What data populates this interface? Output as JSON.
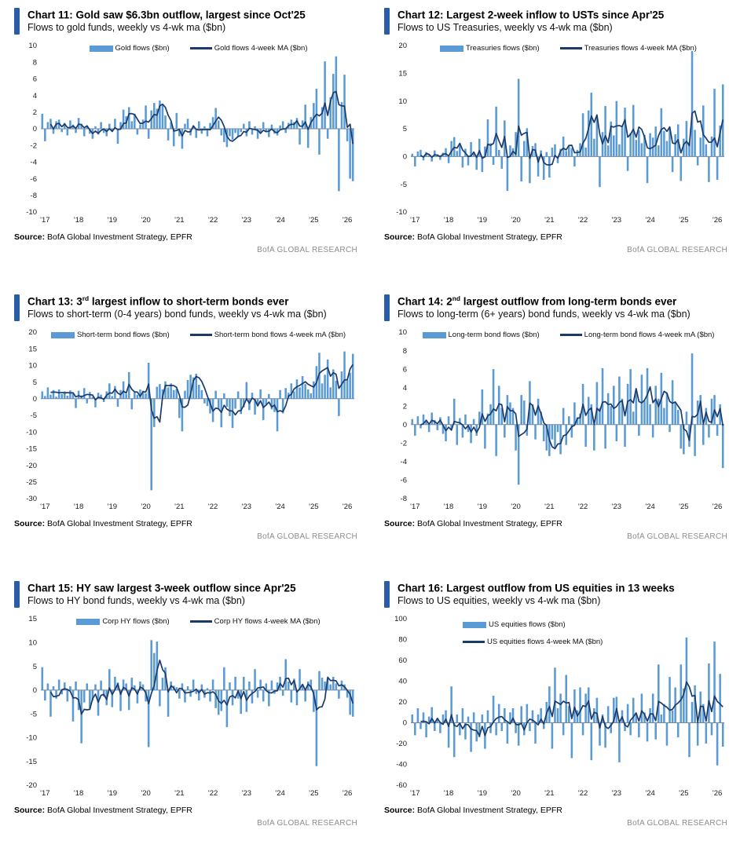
{
  "theme": {
    "bar_color": "#5B9BD5",
    "line_color": "#1B3A6B",
    "accent_color": "#2A5CAA",
    "axis_color": "#7F7F7F",
    "tick_text_color": "#1a1a1a",
    "brand_text_color": "#8C8C8C"
  },
  "panels": [
    {
      "title_pre": "Chart 11: Gold saw $6.3bn outflow, largest since Oct'25",
      "title_sup": "",
      "title_post": "",
      "subtitle": "Flows to gold funds, weekly vs 4-wk ma ($bn)",
      "legend_bar": "Gold flows ($bn)",
      "legend_line": "Gold flows 4-week MA ($bn)",
      "source_label": "Source:",
      "source_rest": " BofA Global Investment Strategy, EPFR",
      "brand": "BofA GLOBAL RESEARCH"
    },
    {
      "title_pre": "Chart 12: Largest 2-week inflow to USTs since Apr'25",
      "title_sup": "",
      "title_post": "",
      "subtitle": "Flows to US Treasuries, weekly vs 4-wk ma ($bn)",
      "legend_bar": "Treasuries flows ($bn)",
      "legend_line": "Treasuries flows 4-week MA ($bn)",
      "source_label": "Source:",
      "source_rest": " BofA Global Investment Strategy, EPFR",
      "brand": "BofA GLOBAL RESEARCH"
    },
    {
      "title_pre": "Chart 13: 3",
      "title_sup": "rd",
      "title_post": " largest inflow to short-term bonds ever",
      "subtitle": "Flows to short-term (0-4 years) bond funds, weekly vs 4-wk ma ($bn)",
      "legend_bar": "Short-term bond flows ($bn)",
      "legend_line": "Short-term bond flows 4-week mA ($bn)",
      "source_label": "Source:",
      "source_rest": " BofA Global Investment Strategy, EPFR",
      "brand": "BofA GLOBAL RESEARCH"
    },
    {
      "title_pre": "Chart 14: 2",
      "title_sup": "nd",
      "title_post": " largest outflow from long-term bonds ever",
      "subtitle": "Flows to long-term (6+ years) bond funds, weekly vs 4-wk ma ($bn)",
      "legend_bar": "Long-term bond flows ($bn)",
      "legend_line": "Long-term bond flows 4-week mA ($bn)",
      "source_label": "Source:",
      "source_rest": " BofA Global Investment Strategy, EPFR",
      "brand": "BofA GLOBAL RESEARCH"
    },
    {
      "title_pre": "Chart 15: HY saw largest 3-week outflow since Apr'25",
      "title_sup": "",
      "title_post": "",
      "subtitle": "Flows to HY bond funds, weekly vs 4-wk ma ($bn)",
      "legend_bar": "Corp HY flows ($bn)",
      "legend_line": "Corp HY flows 4-week MA ($bn)",
      "source_label": "Source:",
      "source_rest": " BofA Global Investment Strategy, EPFR",
      "brand": "BofA GLOBAL RESEARCH"
    },
    {
      "title_pre": "Chart 16: Largest outflow from US equities in 13 weeks",
      "title_sup": "",
      "title_post": "",
      "subtitle": "Flows to US equities, weekly vs 4-wk ma ($bn)",
      "legend_bar": "US equities flows ($bn)",
      "legend_line": "US equities flows 4-week MA ($bn)",
      "source_label": "Source:",
      "source_rest": " BofA Global Investment Strategy, EPFR",
      "brand": "BofA GLOBAL RESEARCH"
    }
  ],
  "chart_data": [
    {
      "type": "bar",
      "series_bar": "Gold flows ($bn)",
      "series_line": "Gold flows 4-week MA ($bn)",
      "ma_window": 4,
      "ylim": [
        -10,
        10
      ],
      "yticks": [
        10,
        8,
        6,
        4,
        2,
        0,
        -2,
        -4,
        -6,
        -8,
        -10
      ],
      "x_tick_labels": [
        "'17",
        "'18",
        "'19",
        "'20",
        "'21",
        "'22",
        "'23",
        "'24",
        "'25",
        "'26"
      ],
      "points_per_year": 12,
      "values": [
        1.8,
        -1.5,
        0.8,
        1.2,
        -0.6,
        0.9,
        1.1,
        -0.4,
        0.7,
        -0.8,
        1.0,
        0.5,
        -0.5,
        1.3,
        0.6,
        -0.9,
        0.4,
        -0.6,
        -1.2,
        0.3,
        -0.7,
        0.8,
        -0.5,
        -0.9,
        0.6,
        -0.4,
        1.2,
        -1.8,
        0.8,
        2.3,
        1.5,
        2.6,
        0.9,
        1.8,
        -0.7,
        0.5,
        1.1,
        2.8,
        -1.2,
        2.2,
        3.1,
        2.4,
        3.4,
        2.9,
        1.6,
        -1.4,
        0.8,
        -2.1,
        1.9,
        -0.9,
        -2.4,
        0.6,
        1.2,
        -0.8,
        0.4,
        -1.1,
        0.9,
        -0.6,
        0.3,
        -0.9,
        0.7,
        1.4,
        2.5,
        1.0,
        -0.8,
        -1.6,
        -2.2,
        -0.9,
        -1.3,
        -0.5,
        -1.0,
        -0.4,
        0.6,
        -0.9,
        0.9,
        -0.7,
        0.3,
        -1.2,
        -0.6,
        0.8,
        -0.4,
        -1.0,
        0.5,
        -0.6,
        -0.8,
        0.4,
        0.9,
        -0.5,
        0.7,
        1.1,
        0.8,
        1.3,
        -1.9,
        1.0,
        2.9,
        -2.3,
        1.4,
        3.1,
        4.8,
        -3.1,
        2.6,
        8.1,
        -1.2,
        3.8,
        6.6,
        8.7,
        -7.5,
        3.2,
        6.5,
        -1.5,
        -6.0,
        -6.3
      ]
    },
    {
      "type": "bar",
      "series_bar": "Treasuries flows ($bn)",
      "series_line": "Treasuries flows 4-week MA ($bn)",
      "ma_window": 4,
      "ylim": [
        -10,
        20
      ],
      "yticks": [
        20,
        15,
        10,
        5,
        0,
        -5,
        -10
      ],
      "x_tick_labels": [
        "'17",
        "'18",
        "'19",
        "'20",
        "'21",
        "'22",
        "'23",
        "'24",
        "'25",
        "'26"
      ],
      "points_per_year": 12,
      "values": [
        0.5,
        -1.8,
        0.9,
        1.2,
        -0.7,
        0.8,
        0.3,
        -0.9,
        1.1,
        0.4,
        -0.6,
        0.7,
        1.5,
        -1.2,
        2.8,
        3.5,
        1.0,
        2.2,
        -2.0,
        1.4,
        -1.6,
        2.6,
        0.8,
        -2.4,
        3.2,
        -2.8,
        1.8,
        6.7,
        2.4,
        -1.5,
        9.0,
        1.2,
        -2.2,
        6.5,
        -6.2,
        2.0,
        1.5,
        4.4,
        14.0,
        -4.5,
        2.8,
        5.1,
        -4.8,
        1.9,
        2.4,
        -3.6,
        1.1,
        -4.2,
        0.8,
        -3.8,
        1.6,
        2.2,
        -1.2,
        1.4,
        3.6,
        1.0,
        2.0,
        1.5,
        -1.8,
        1.2,
        2.4,
        7.8,
        1.6,
        8.3,
        11.5,
        3.2,
        7.0,
        -5.5,
        4.4,
        9.1,
        2.0,
        6.3,
        3.8,
        10.0,
        2.2,
        5.6,
        8.8,
        -2.6,
        4.2,
        9.3,
        3.0,
        4.8,
        2.4,
        3.9,
        -4.8,
        4.2,
        3.4,
        5.4,
        2.0,
        8.7,
        4.6,
        2.8,
        5.2,
        -2.8,
        4.0,
        5.8,
        -4.4,
        3.2,
        6.4,
        2.6,
        19.0,
        4.8,
        -1.6,
        3.4,
        9.2,
        2.2,
        -4.6,
        3.6,
        12.2,
        -4.2,
        5.6,
        13.0
      ]
    },
    {
      "type": "bar",
      "series_bar": "Short-term bond flows ($bn)",
      "series_line": "Short-term bond flows 4-week mA ($bn)",
      "ma_window": 4,
      "ylim": [
        -30,
        20
      ],
      "yticks": [
        20,
        15,
        10,
        5,
        0,
        -5,
        -10,
        -15,
        -20,
        -25,
        -30
      ],
      "x_tick_labels": [
        "'17",
        "'18",
        "'19",
        "'20",
        "'21",
        "'22",
        "'23",
        "'24",
        "'25",
        "'26"
      ],
      "points_per_year": 12,
      "values": [
        2.2,
        0.8,
        3.4,
        1.2,
        2.6,
        0.6,
        2.8,
        1.4,
        2.2,
        0.9,
        2.5,
        1.6,
        -2.8,
        2.4,
        1.0,
        3.2,
        -1.4,
        2.0,
        0.6,
        -2.6,
        1.8,
        1.2,
        -1.0,
        2.2,
        4.6,
        0.8,
        3.8,
        -2.4,
        2.6,
        5.2,
        1.4,
        8.0,
        -3.2,
        2.0,
        1.2,
        2.8,
        2.4,
        1.6,
        10.8,
        -27.5,
        -8.5,
        3.6,
        4.4,
        2.8,
        5.2,
        3.4,
        4.6,
        2.6,
        3.0,
        -5.8,
        -9.8,
        2.4,
        5.6,
        7.2,
        6.4,
        7.5,
        4.2,
        2.6,
        -1.4,
        -2.2,
        -4.4,
        -7.0,
        2.4,
        -3.2,
        -8.6,
        1.6,
        -2.4,
        -5.2,
        -8.8,
        -3.0,
        2.2,
        -4.6,
        -2.6,
        5.0,
        -3.4,
        1.8,
        -4.8,
        -2.2,
        2.8,
        -6.4,
        -1.8,
        1.4,
        -3.2,
        -4.0,
        -9.8,
        2.6,
        -4.4,
        3.2,
        1.8,
        4.6,
        2.2,
        5.8,
        3.4,
        6.8,
        4.4,
        2.8,
        1.6,
        5.2,
        9.8,
        13.8,
        4.6,
        7.2,
        11.8,
        3.4,
        8.8,
        5.4,
        -5.2,
        8.2,
        14.2,
        5.6,
        7.8,
        13.5
      ]
    },
    {
      "type": "bar",
      "series_bar": "Long-term bond flows ($bn)",
      "series_line": "Long-term bond flows 4-week mA ($bn)",
      "ma_window": 4,
      "ylim": [
        -8,
        10
      ],
      "yticks": [
        10,
        8,
        6,
        4,
        2,
        0,
        -2,
        -4,
        -6,
        -8
      ],
      "x_tick_labels": [
        "'17",
        "'18",
        "'19",
        "'20",
        "'21",
        "'22",
        "'23",
        "'24",
        "'25",
        "'26"
      ],
      "points_per_year": 12,
      "values": [
        0.6,
        -1.2,
        0.9,
        -0.4,
        1.1,
        0.3,
        -0.8,
        1.3,
        0.5,
        -0.6,
        0.8,
        -1.0,
        -1.8,
        0.9,
        -0.5,
        2.8,
        -2.2,
        0.7,
        -1.4,
        1.1,
        -0.8,
        -2.0,
        0.6,
        -1.2,
        1.4,
        3.8,
        -2.6,
        1.2,
        2.2,
        6.0,
        -3.4,
        4.2,
        1.8,
        -1.4,
        3.2,
        2.4,
        1.8,
        -2.8,
        -6.5,
        3.2,
        2.6,
        -1.2,
        4.7,
        2.2,
        -1.6,
        2.8,
        1.4,
        -1.8,
        -2.8,
        -3.4,
        -1.6,
        -2.6,
        -0.8,
        -3.2,
        1.8,
        -2.2,
        0.9,
        -1.4,
        2.4,
        0.8,
        1.2,
        4.4,
        -2.4,
        3.0,
        2.2,
        -2.8,
        4.6,
        1.8,
        6.1,
        -2.6,
        3.4,
        2.0,
        4.2,
        -1.8,
        5.2,
        2.8,
        -2.4,
        4.4,
        6.0,
        1.4,
        3.8,
        -1.2,
        5.4,
        2.6,
        6.1,
        2.2,
        -1.4,
        4.2,
        2.8,
        5.6,
        1.8,
        3.4,
        -0.8,
        4.8,
        2.4,
        1.6,
        -2.6,
        -3.2,
        1.4,
        -2.4,
        7.7,
        -3.4,
        2.6,
        3.2,
        -2.2,
        1.8,
        -1.4,
        2.8,
        3.2,
        -1.2,
        2.2,
        -4.7
      ]
    },
    {
      "type": "bar",
      "series_bar": "Corp HY flows ($bn)",
      "series_line": "Corp HY flows 4-week MA ($bn)",
      "ma_window": 4,
      "ylim": [
        -20,
        15
      ],
      "yticks": [
        15,
        10,
        5,
        0,
        -5,
        -10,
        -15,
        -20
      ],
      "x_tick_labels": [
        "'17",
        "'18",
        "'19",
        "'20",
        "'21",
        "'22",
        "'23",
        "'24",
        "'25",
        "'26"
      ],
      "points_per_year": 12,
      "values": [
        4.8,
        -2.2,
        1.4,
        -5.6,
        0.8,
        -1.8,
        2.2,
        -0.9,
        1.6,
        -2.4,
        0.8,
        -6.6,
        1.8,
        -4.2,
        -11.2,
        -2.6,
        1.4,
        -3.8,
        -2.2,
        1.2,
        -5.4,
        2.0,
        -1.4,
        -3.2,
        4.4,
        -3.6,
        2.8,
        1.6,
        -4.4,
        2.2,
        1.4,
        -4.2,
        2.6,
        1.0,
        -2.8,
        1.8,
        1.2,
        -2.4,
        -12.0,
        10.5,
        7.8,
        10.2,
        -3.4,
        2.6,
        4.8,
        -5.6,
        1.8,
        0.9,
        0.6,
        -1.8,
        1.4,
        -2.6,
        0.8,
        -1.4,
        2.2,
        -0.8,
        -2.2,
        1.2,
        -1.6,
        0.4,
        -2.4,
        2.2,
        -3.8,
        -5.2,
        -4.4,
        4.8,
        -7.8,
        1.6,
        -3.2,
        2.8,
        -1.8,
        -5.0,
        2.8,
        -4.6,
        1.8,
        -2.8,
        4.4,
        -1.6,
        2.2,
        -2.4,
        1.4,
        -3.4,
        2.0,
        -0.8,
        1.6,
        2.8,
        -1.2,
        6.5,
        1.8,
        -2.6,
        2.4,
        -3.2,
        4.4,
        1.2,
        -2.4,
        1.8,
        2.2,
        -4.6,
        -16.0,
        4.0,
        2.6,
        1.8,
        2.4,
        1.2,
        2.8,
        1.4,
        -1.8,
        2.0,
        1.2,
        -1.6,
        -5.2,
        -5.6
      ]
    },
    {
      "type": "bar",
      "series_bar": "US equities flows ($bn)",
      "series_line": "US equities flows 4-week MA ($bn)",
      "ma_window": 4,
      "ylim": [
        -60,
        100
      ],
      "yticks": [
        100,
        80,
        60,
        40,
        20,
        0,
        -20,
        -40,
        -60
      ],
      "x_tick_labels": [
        "'17",
        "'18",
        "'19",
        "'20",
        "'21",
        "'22",
        "'23",
        "'24",
        "'25",
        "'26"
      ],
      "points_per_year": 12,
      "values": [
        8,
        -12,
        14,
        -6,
        10,
        -14,
        6,
        15,
        -8,
        4,
        -10,
        8,
        12,
        -24,
        35,
        -33,
        8,
        -12,
        14,
        -16,
        6,
        -28,
        10,
        -18,
        -14,
        8,
        -25,
        12,
        -10,
        26,
        -12,
        18,
        -8,
        14,
        -20,
        10,
        14,
        -10,
        -22,
        16,
        -12,
        18,
        -8,
        12,
        -20,
        8,
        14,
        -6,
        20,
        35,
        -25,
        53,
        14,
        28,
        -12,
        46,
        16,
        -34,
        32,
        12,
        34,
        -12,
        28,
        34,
        -36,
        14,
        24,
        -22,
        8,
        -24,
        16,
        -10,
        24,
        25,
        -38,
        12,
        -8,
        18,
        -12,
        24,
        8,
        -14,
        28,
        10,
        -18,
        14,
        28,
        -16,
        56,
        8,
        18,
        -22,
        44,
        12,
        34,
        -14,
        56,
        33,
        82,
        -33,
        20,
        36,
        -22,
        30,
        18,
        -20,
        57,
        -12,
        78,
        -41,
        47,
        -23
      ]
    }
  ]
}
